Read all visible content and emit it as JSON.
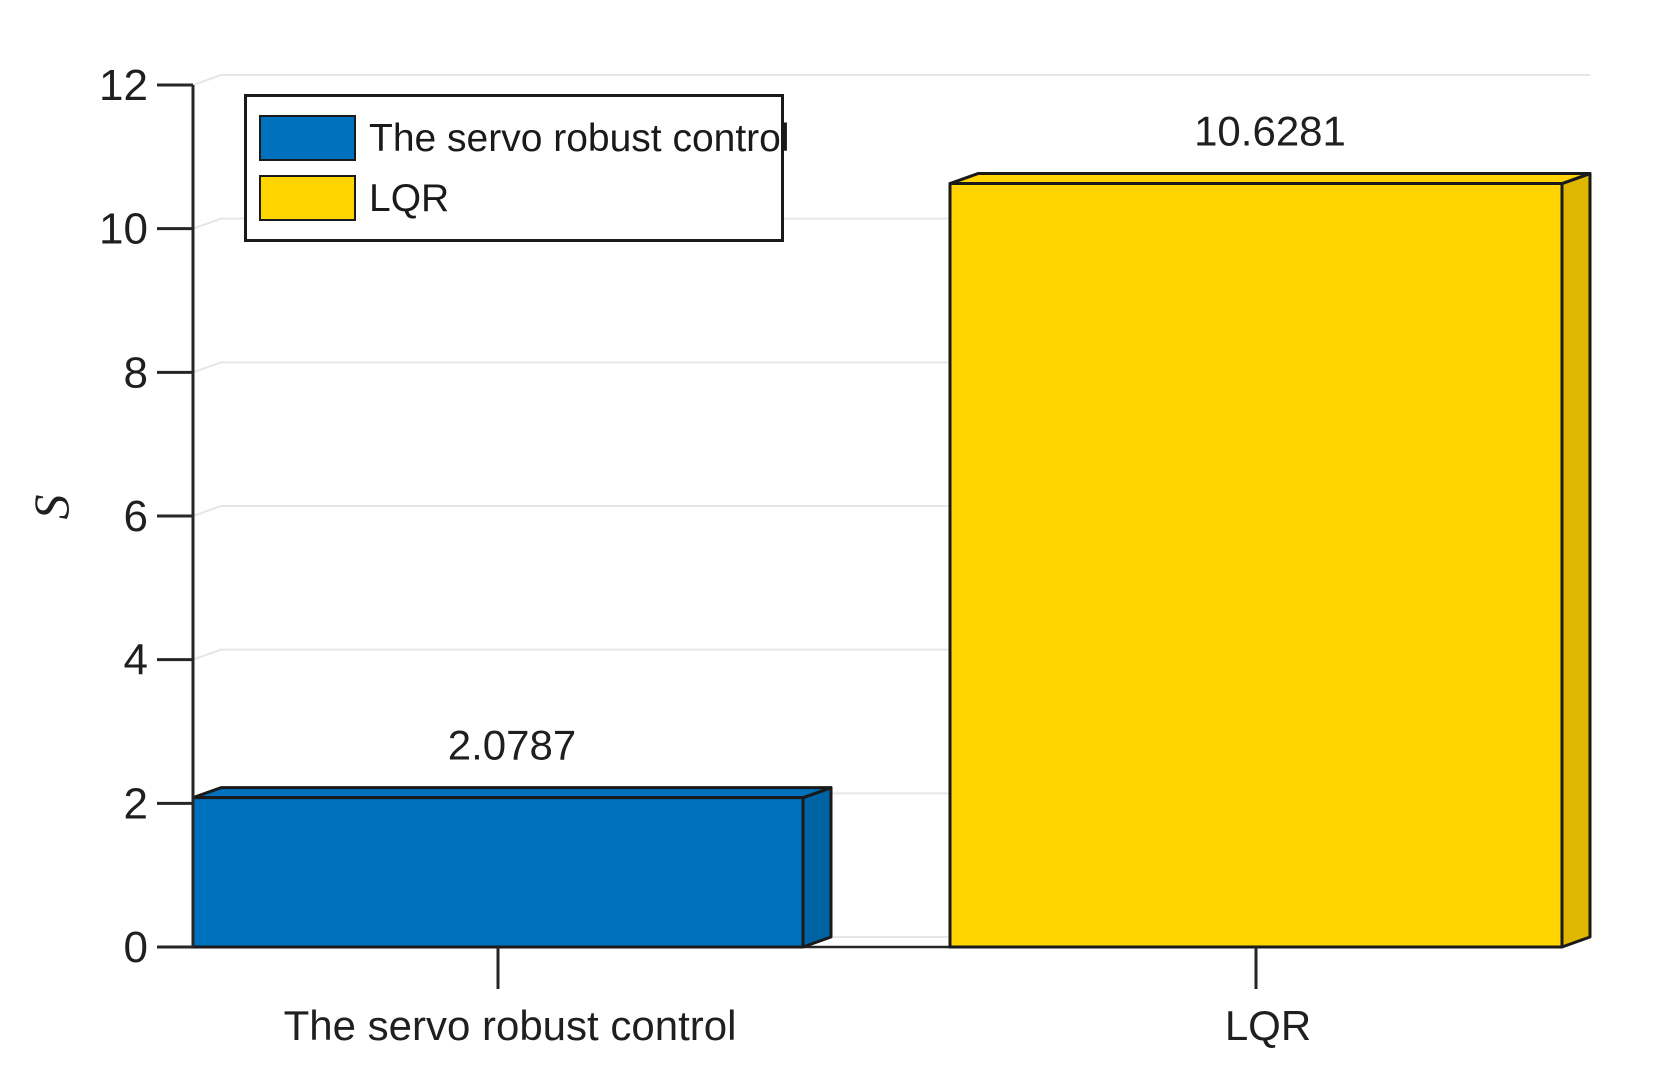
{
  "chart_data": {
    "type": "bar",
    "title": "",
    "xlabel": "",
    "ylabel": "S",
    "categories": [
      "The servo robust control",
      "LQR"
    ],
    "values": [
      2.0787,
      10.6281
    ],
    "value_labels": [
      "2.0787",
      "10.6281"
    ],
    "series_colors": [
      "#0072BD",
      "#FFD400"
    ],
    "ylim": [
      0,
      12
    ],
    "yticks": [
      0,
      2,
      4,
      6,
      8,
      10,
      12
    ],
    "grid": "horizontal-light",
    "bar_style": "3d-bevel",
    "edge_color": "#1a1a1a",
    "grid_color": "#e6e6e6",
    "axis_color": "#262626",
    "text_color": "#1f1f1f",
    "background": "#ffffff",
    "legend": {
      "position": "top-left",
      "entries": [
        {
          "label": "The servo robust control",
          "color": "#0072BD"
        },
        {
          "label": "LQR",
          "color": "#FFD400"
        }
      ]
    }
  }
}
